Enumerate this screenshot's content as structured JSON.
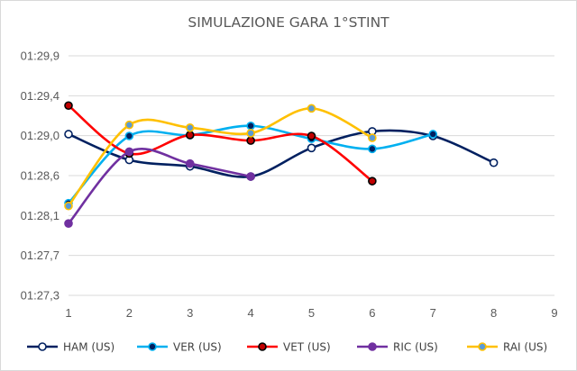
{
  "chart_data": {
    "type": "line",
    "title": "SIMULAZIONE GARA 1°STINT",
    "xlabel": "",
    "ylabel": "",
    "x_ticks": [
      "1",
      "2",
      "3",
      "4",
      "5",
      "6",
      "7",
      "8",
      "9"
    ],
    "xlim": [
      1,
      9
    ],
    "y_ticks": [
      "01:27,3",
      "01:27,7",
      "01:28,1",
      "01:28,6",
      "01:29,0",
      "01:29,4",
      "01:29,9"
    ],
    "ylim_seconds": [
      87.3,
      89.9
    ],
    "grid": "horizontal",
    "legend_position": "bottom",
    "series": [
      {
        "name": "HAM (US)",
        "line_color": "#002060",
        "marker_fill": "#ffffff",
        "marker_edge": "#002060",
        "x": [
          1,
          2,
          3,
          4,
          5,
          6,
          7,
          8
        ],
        "y": [
          "01:29,05",
          "01:28,77",
          "01:28,70",
          "01:28,59",
          "01:28,90",
          "01:29,08",
          "01:29,03",
          "01:28,74"
        ],
        "y_seconds": [
          89.05,
          88.77,
          88.7,
          88.59,
          88.9,
          89.08,
          89.03,
          88.74
        ]
      },
      {
        "name": "VER (US)",
        "line_color": "#00B0F0",
        "marker_fill": "#002060",
        "marker_edge": "#00B0F0",
        "x": [
          1,
          2,
          3,
          4,
          5,
          6,
          7
        ],
        "y": [
          "01:28,30",
          "01:29,03",
          "01:29,04",
          "01:29,14",
          "01:29,00",
          "01:28,89",
          "01:29,05"
        ],
        "y_seconds": [
          88.3,
          89.03,
          89.04,
          89.14,
          89.0,
          88.89,
          89.05
        ]
      },
      {
        "name": "VET (US)",
        "line_color": "#FF0000",
        "marker_fill": "#C00000",
        "marker_edge": "#000000",
        "x": [
          1,
          2,
          3,
          4,
          5,
          6
        ],
        "y": [
          "01:29,36",
          "01:28,84",
          "01:29,04",
          "01:28,98",
          "01:29,03",
          "01:28,54"
        ],
        "y_seconds": [
          89.36,
          88.84,
          89.04,
          88.98,
          89.03,
          88.54
        ]
      },
      {
        "name": "RIC (US)",
        "line_color": "#7030A0",
        "marker_fill": "#7030A0",
        "marker_edge": "#7030A0",
        "x": [
          1,
          2,
          3,
          4
        ],
        "y": [
          "01:28,08",
          "01:28,86",
          "01:28,73",
          "01:28,59"
        ],
        "y_seconds": [
          88.08,
          88.86,
          88.73,
          88.59
        ]
      },
      {
        "name": "RAI (US)",
        "line_color": "#FFC000",
        "marker_fill": "#5B9BD5",
        "marker_edge": "#FFC000",
        "x": [
          1,
          2,
          3,
          4,
          5,
          6
        ],
        "y": [
          "01:28,27",
          "01:29,15",
          "01:29,12",
          "01:29,06",
          "01:29,33",
          "01:29,01"
        ],
        "y_seconds": [
          88.27,
          89.15,
          89.12,
          89.06,
          89.33,
          89.01
        ]
      }
    ]
  }
}
